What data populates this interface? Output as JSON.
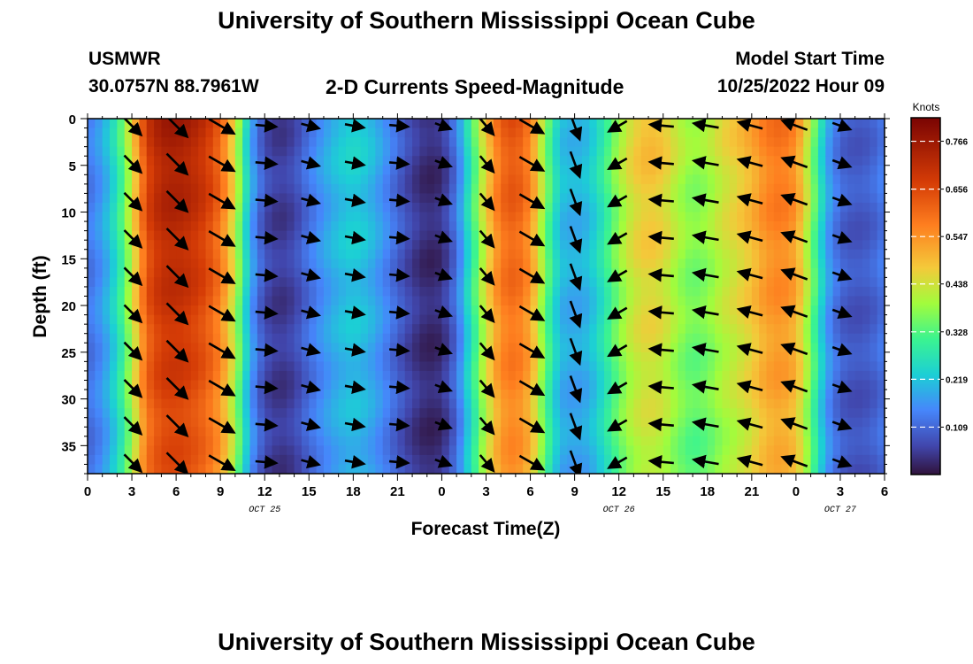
{
  "header": {
    "title": "University of Southern Mississippi Ocean Cube",
    "station": "USMWR",
    "location": "30.0757N  88.7961W",
    "subtitle": "2-D Currents Speed-Magnitude",
    "model_label": "Model Start Time",
    "model_time": "10/25/2022 Hour 09",
    "footer_title": "University of Southern Mississippi Ocean Cube"
  },
  "chart_data": {
    "type": "heatmap",
    "title": "2-D Currents Speed-Magnitude",
    "xlabel": "Forecast Time(Z)",
    "ylabel": "Depth (ft)",
    "x_tick_labels": [
      "0",
      "3",
      "6",
      "9",
      "12",
      "15",
      "18",
      "21",
      "0",
      "3",
      "6",
      "9",
      "12",
      "15",
      "18",
      "21",
      "0",
      "3",
      "6"
    ],
    "x_range_hours": [
      0,
      54
    ],
    "date_labels": [
      {
        "text": "OCT 25",
        "hour": 12
      },
      {
        "text": "OCT 26",
        "hour": 36
      },
      {
        "text": "OCT 27",
        "hour": 51
      }
    ],
    "y_ticks": [
      0,
      5,
      10,
      15,
      20,
      25,
      30,
      35
    ],
    "ylim": [
      0,
      38
    ],
    "colorbar": {
      "unit_label": "Knots",
      "ticks": [
        "0.766",
        "0.656",
        "0.547",
        "0.438",
        "0.328",
        "0.219",
        "0.109"
      ],
      "range": [
        0,
        0.82
      ]
    },
    "speed_profile_hours": [
      0,
      1,
      2,
      3,
      4,
      5,
      6,
      7,
      8,
      9,
      10,
      11,
      12,
      13,
      14,
      15,
      16,
      17,
      18,
      19,
      20,
      21,
      22,
      23,
      24,
      25,
      26,
      27,
      28,
      29,
      30,
      31,
      32,
      33,
      34,
      35,
      36,
      37,
      38,
      39,
      40,
      41,
      42,
      43,
      44,
      45,
      46,
      47,
      48,
      49,
      50,
      51,
      52,
      53,
      54
    ],
    "speed_profile_knots": [
      0.13,
      0.18,
      0.28,
      0.45,
      0.68,
      0.75,
      0.76,
      0.74,
      0.7,
      0.62,
      0.45,
      0.2,
      0.08,
      0.05,
      0.07,
      0.13,
      0.18,
      0.22,
      0.24,
      0.22,
      0.17,
      0.11,
      0.06,
      0.03,
      0.04,
      0.13,
      0.3,
      0.48,
      0.62,
      0.65,
      0.58,
      0.38,
      0.22,
      0.2,
      0.22,
      0.3,
      0.4,
      0.47,
      0.5,
      0.48,
      0.42,
      0.38,
      0.4,
      0.45,
      0.48,
      0.52,
      0.58,
      0.6,
      0.56,
      0.4,
      0.2,
      0.11,
      0.09,
      0.1,
      0.14
    ],
    "depth_effect": "speed decreases slightly toward 38 ft",
    "vector_times_hours": [
      3,
      6,
      9,
      12,
      15,
      18,
      21,
      24,
      27,
      30,
      33,
      36,
      39,
      42,
      45,
      48,
      51
    ],
    "vector_depths_ft": [
      0,
      4,
      8,
      12,
      16,
      20,
      24,
      28,
      32,
      36
    ],
    "vector_direction_deg_by_time": [
      135,
      135,
      120,
      95,
      105,
      100,
      95,
      110,
      140,
      120,
      160,
      240,
      275,
      280,
      285,
      290,
      110
    ],
    "vector_lengths_knots_by_time": [
      0.45,
      0.75,
      0.7,
      0.3,
      0.18,
      0.22,
      0.2,
      0.1,
      0.3,
      0.62,
      0.6,
      0.3,
      0.45,
      0.52,
      0.5,
      0.58,
      0.2
    ]
  }
}
